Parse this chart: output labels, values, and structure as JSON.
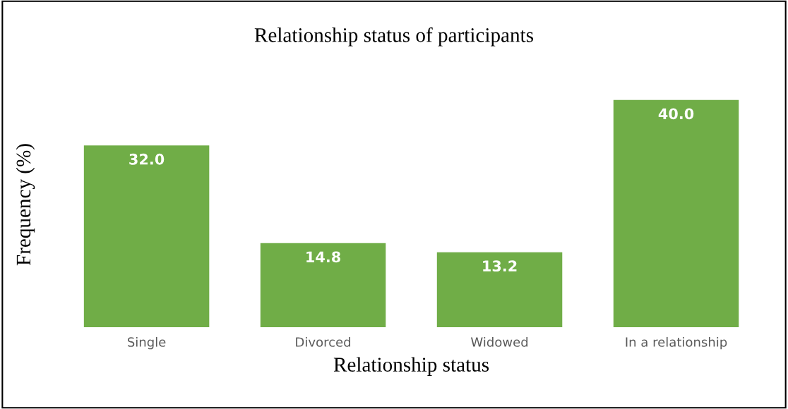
{
  "chart_data": {
    "type": "bar",
    "title": "Relationship status of participants",
    "xlabel": "Relationship status",
    "ylabel": "Frequency (%)",
    "categories": [
      "Single",
      "Divorced",
      "Widowed",
      "In a relationship"
    ],
    "values": [
      32.0,
      14.8,
      13.2,
      40.0
    ],
    "value_labels": [
      "32.0",
      "14.8",
      "13.2",
      "40.0"
    ],
    "color": "#70ad47",
    "grid": false,
    "legend": false,
    "tick_labels": "x"
  }
}
